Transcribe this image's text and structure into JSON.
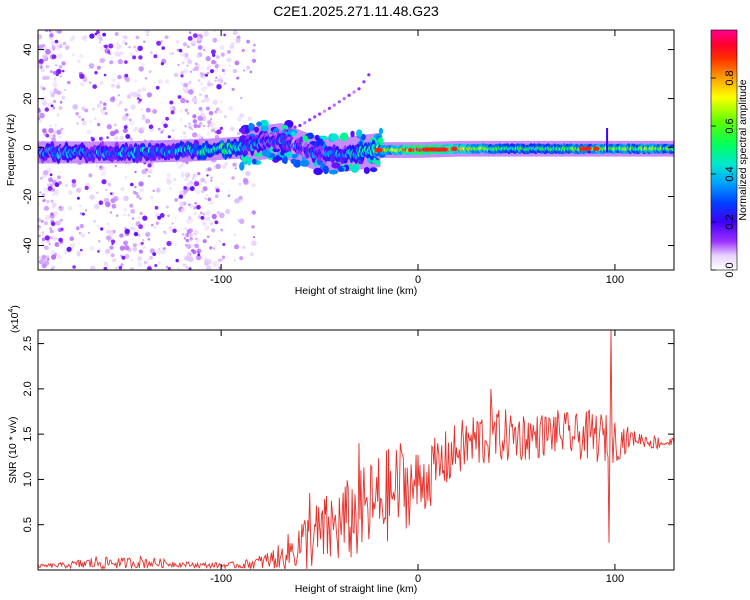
{
  "title": "C2E1.2025.271.11.48.G23",
  "colors": {
    "background": "#ffffff",
    "axis": "#000000",
    "snr_line": "#e8302a",
    "rainbow": [
      "#ffffff",
      "#f4e6ff",
      "#d9b8ff",
      "#8a00ff",
      "#3f00ff",
      "#0000ff",
      "#0080ff",
      "#00e0e0",
      "#00ff80",
      "#00ff00",
      "#a0ff00",
      "#ffff00",
      "#ffa000",
      "#ff4000",
      "#ff0000",
      "#ff0080"
    ]
  },
  "chart_data": [
    {
      "type": "heatmap",
      "title": "C2E1.2025.271.11.48.G23",
      "xlabel": "Height of straight line (km)",
      "ylabel": "Frequency (Hz)",
      "xlim": [
        -193,
        130
      ],
      "ylim": [
        -50,
        48
      ],
      "xticks": [
        -100,
        0,
        100
      ],
      "xtick_labels": [
        "-100",
        "0",
        "100"
      ],
      "yticks": [
        -40,
        -20,
        0,
        20,
        40
      ],
      "ytick_labels": [
        "-40",
        "-20",
        "0",
        "20",
        "40"
      ],
      "colorbar": {
        "label": "Normalized spectral amplitude",
        "range": [
          0,
          1
        ],
        "ticks": [
          0,
          0.2,
          0.4,
          0.6,
          0.8
        ],
        "tick_labels": [
          "0.0",
          "0.2",
          "0.4",
          "0.6",
          "0.8"
        ]
      },
      "ridge": {
        "description": "main spectral ridge near 0 Hz",
        "x": [
          -193,
          -170,
          -150,
          -130,
          -110,
          -100,
          -90,
          -80,
          -70,
          -60,
          -50,
          -40,
          -30,
          -20,
          -10,
          0,
          20,
          40,
          60,
          80,
          100,
          130
        ],
        "center_hz": [
          -2,
          -2,
          -2,
          -1.5,
          -1,
          -0.5,
          0,
          2,
          3,
          0,
          -3,
          -3,
          -2,
          -1,
          -1,
          -1,
          -0.5,
          -0.5,
          -0.5,
          -0.5,
          -0.5,
          -0.5
        ],
        "amplitude": [
          0.3,
          0.3,
          0.35,
          0.35,
          0.4,
          0.5,
          0.4,
          0.25,
          0.3,
          0.25,
          0.3,
          0.3,
          0.4,
          0.6,
          0.7,
          0.95,
          0.75,
          0.5,
          0.5,
          0.55,
          0.6,
          0.55
        ]
      },
      "faint_arc": {
        "description": "weak rising feature",
        "x": [
          -75,
          -60,
          -45,
          -30,
          -23
        ],
        "hz": [
          5,
          9,
          16,
          24,
          32
        ]
      }
    },
    {
      "type": "line",
      "xlabel": "Height of straight line (km)",
      "ylabel": "SNR (10 * v/v)",
      "scale_label": "(x10",
      "scale_exponent": "4",
      "scale_suffix": ")",
      "xlim": [
        -193,
        130
      ],
      "ylim": [
        0,
        2.65
      ],
      "xticks": [
        -100,
        0,
        100
      ],
      "xtick_labels": [
        "-100",
        "0",
        "100"
      ],
      "yticks": [
        0.5,
        1.0,
        1.5,
        2.0,
        2.5
      ],
      "ytick_labels": [
        "0.5",
        "1.0",
        "1.5",
        "2.0",
        "2.5"
      ],
      "series": [
        {
          "name": "SNR",
          "envelope_x": [
            -193,
            -180,
            -170,
            -160,
            -150,
            -140,
            -130,
            -120,
            -110,
            -100,
            -90,
            -80,
            -70,
            -60,
            -50,
            -40,
            -30,
            -20,
            -10,
            0,
            10,
            20,
            30,
            40,
            50,
            60,
            70,
            80,
            90,
            100,
            110,
            120,
            130
          ],
          "base": [
            0.04,
            0.05,
            0.06,
            0.08,
            0.07,
            0.08,
            0.07,
            0.06,
            0.05,
            0.05,
            0.05,
            0.08,
            0.12,
            0.25,
            0.35,
            0.45,
            0.55,
            0.7,
            0.85,
            0.9,
            1.1,
            1.3,
            1.4,
            1.45,
            1.45,
            1.45,
            1.5,
            1.45,
            1.45,
            1.4,
            1.45,
            1.4,
            1.4
          ],
          "amp": [
            0.02,
            0.03,
            0.06,
            0.09,
            0.06,
            0.07,
            0.05,
            0.03,
            0.03,
            0.03,
            0.04,
            0.08,
            0.15,
            0.3,
            0.4,
            0.45,
            0.5,
            0.55,
            0.5,
            0.4,
            0.35,
            0.3,
            0.35,
            0.3,
            0.3,
            0.25,
            0.25,
            0.25,
            0.3,
            0.25,
            0.08,
            0.08,
            0.06
          ],
          "spikes": [
            {
              "x": -55,
              "y": 0.85
            },
            {
              "x": -30,
              "y": 1.4
            },
            {
              "x": -9,
              "y": 1.4
            },
            {
              "x": 37,
              "y": 2.0
            },
            {
              "x": 98,
              "y": 2.65
            },
            {
              "x": 97,
              "y": 0.3
            }
          ]
        }
      ]
    }
  ]
}
